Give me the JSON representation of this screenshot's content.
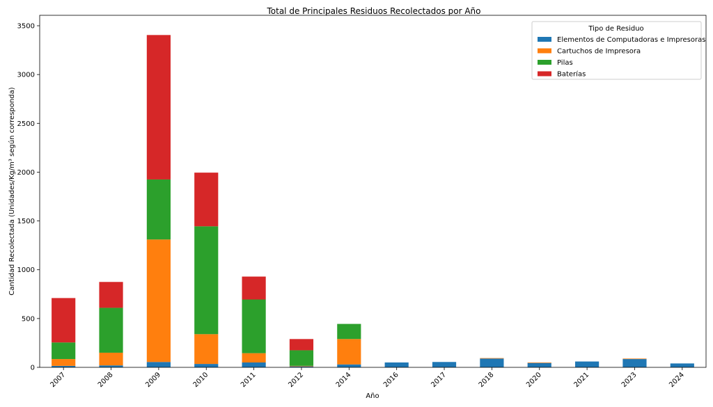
{
  "chart_data": {
    "type": "bar",
    "stacked": true,
    "title": "Total de Principales Residuos Recolectados por Año",
    "xlabel": "Año",
    "ylabel": "Cantidad Recolectada (Unidades/Kg/m³ según corresponda)",
    "ylim": [
      0,
      3500
    ],
    "yticks": [
      0,
      500,
      1000,
      1500,
      2000,
      2500,
      3000,
      3500
    ],
    "grid": false,
    "categories": [
      "2007",
      "2008",
      "2009",
      "2010",
      "2011",
      "2012",
      "2014",
      "2016",
      "2017",
      "2018",
      "2020",
      "2021",
      "2023",
      "2024"
    ],
    "legend": {
      "title": "Tipo de Residuo",
      "placement": "top-right"
    },
    "series": [
      {
        "name": "Elementos de Computadoras e Impresoras",
        "color": "#1f77b4",
        "values": [
          15,
          20,
          55,
          35,
          50,
          10,
          30,
          50,
          55,
          90,
          45,
          60,
          85,
          40
        ]
      },
      {
        "name": "Cartuchos de Impresora",
        "color": "#ff7f0e",
        "values": [
          70,
          130,
          1255,
          305,
          95,
          5,
          260,
          0,
          0,
          5,
          5,
          0,
          5,
          0
        ]
      },
      {
        "name": "Pilas",
        "color": "#2ca02c",
        "values": [
          170,
          460,
          615,
          1105,
          550,
          160,
          155,
          0,
          0,
          0,
          0,
          0,
          0,
          0
        ]
      },
      {
        "name": "Baterías",
        "color": "#d62728",
        "values": [
          455,
          265,
          1480,
          550,
          235,
          115,
          0,
          0,
          0,
          0,
          0,
          0,
          0,
          0
        ]
      }
    ]
  }
}
